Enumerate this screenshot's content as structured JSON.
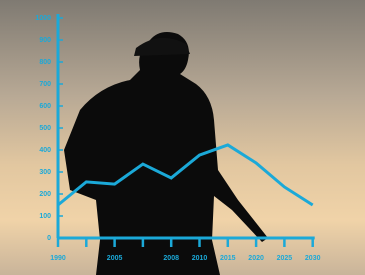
{
  "chart_data": {
    "type": "line",
    "categories": [
      "1990",
      null,
      "2005",
      null,
      "2008",
      "2010",
      "2015",
      "2020",
      "2025",
      "2030"
    ],
    "values": [
      150,
      255,
      245,
      336,
      273,
      377,
      423,
      341,
      232,
      150
    ],
    "color": "#1ba9d8",
    "ylim": [
      0,
      1000
    ],
    "yticks": [
      0,
      100,
      200,
      300,
      400,
      500,
      600,
      700,
      800,
      900,
      1000
    ],
    "grid": false
  }
}
